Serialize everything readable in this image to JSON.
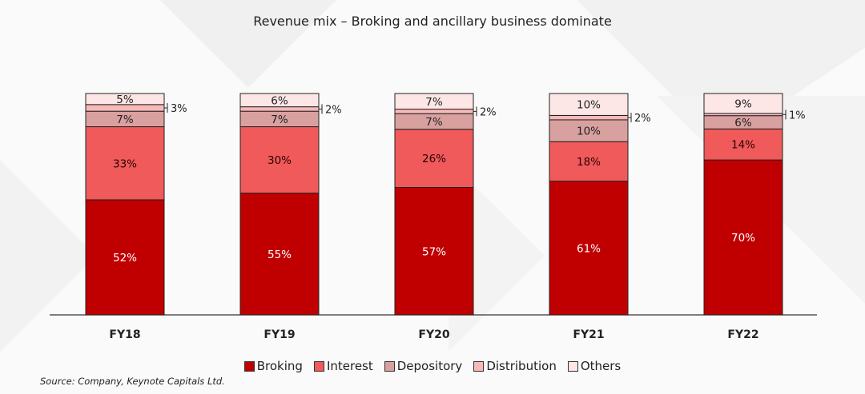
{
  "chart_data": {
    "type": "bar",
    "stacked": true,
    "title": "Revenue mix – Broking and ancillary business dominate",
    "categories": [
      "FY18",
      "FY19",
      "FY20",
      "FY21",
      "FY22"
    ],
    "series": [
      {
        "name": "Broking",
        "color": "#c00000",
        "values": [
          52,
          55,
          57,
          61,
          70
        ]
      },
      {
        "name": "Interest",
        "color": "#f05a5a",
        "values": [
          33,
          30,
          26,
          18,
          14
        ]
      },
      {
        "name": "Depository",
        "color": "#d9a0a0",
        "values": [
          7,
          7,
          7,
          10,
          6
        ]
      },
      {
        "name": "Distribution",
        "color": "#f8b8b8",
        "values": [
          3,
          2,
          2,
          2,
          1
        ]
      },
      {
        "name": "Others",
        "color": "#fde6e6",
        "values": [
          5,
          6,
          7,
          10,
          9
        ]
      }
    ],
    "data_labels": [
      [
        "52%",
        "33%",
        "7%",
        "3%",
        "5%"
      ],
      [
        "55%",
        "30%",
        "7%",
        "2%",
        "6%"
      ],
      [
        "57%",
        "26%",
        "7%",
        "2%",
        "7%"
      ],
      [
        "61%",
        "18%",
        "10%",
        "2%",
        "10%"
      ],
      [
        "70%",
        "14%",
        "6%",
        "1%",
        "9%"
      ]
    ],
    "ylim": [
      0,
      100
    ],
    "grid": false,
    "legend_position": "bottom"
  },
  "legend": {
    "broking": "Broking",
    "interest": "Interest",
    "depository": "Depository",
    "distribution": "Distribution",
    "others": "Others"
  },
  "source": "Source: Company, Keynote Capitals Ltd."
}
